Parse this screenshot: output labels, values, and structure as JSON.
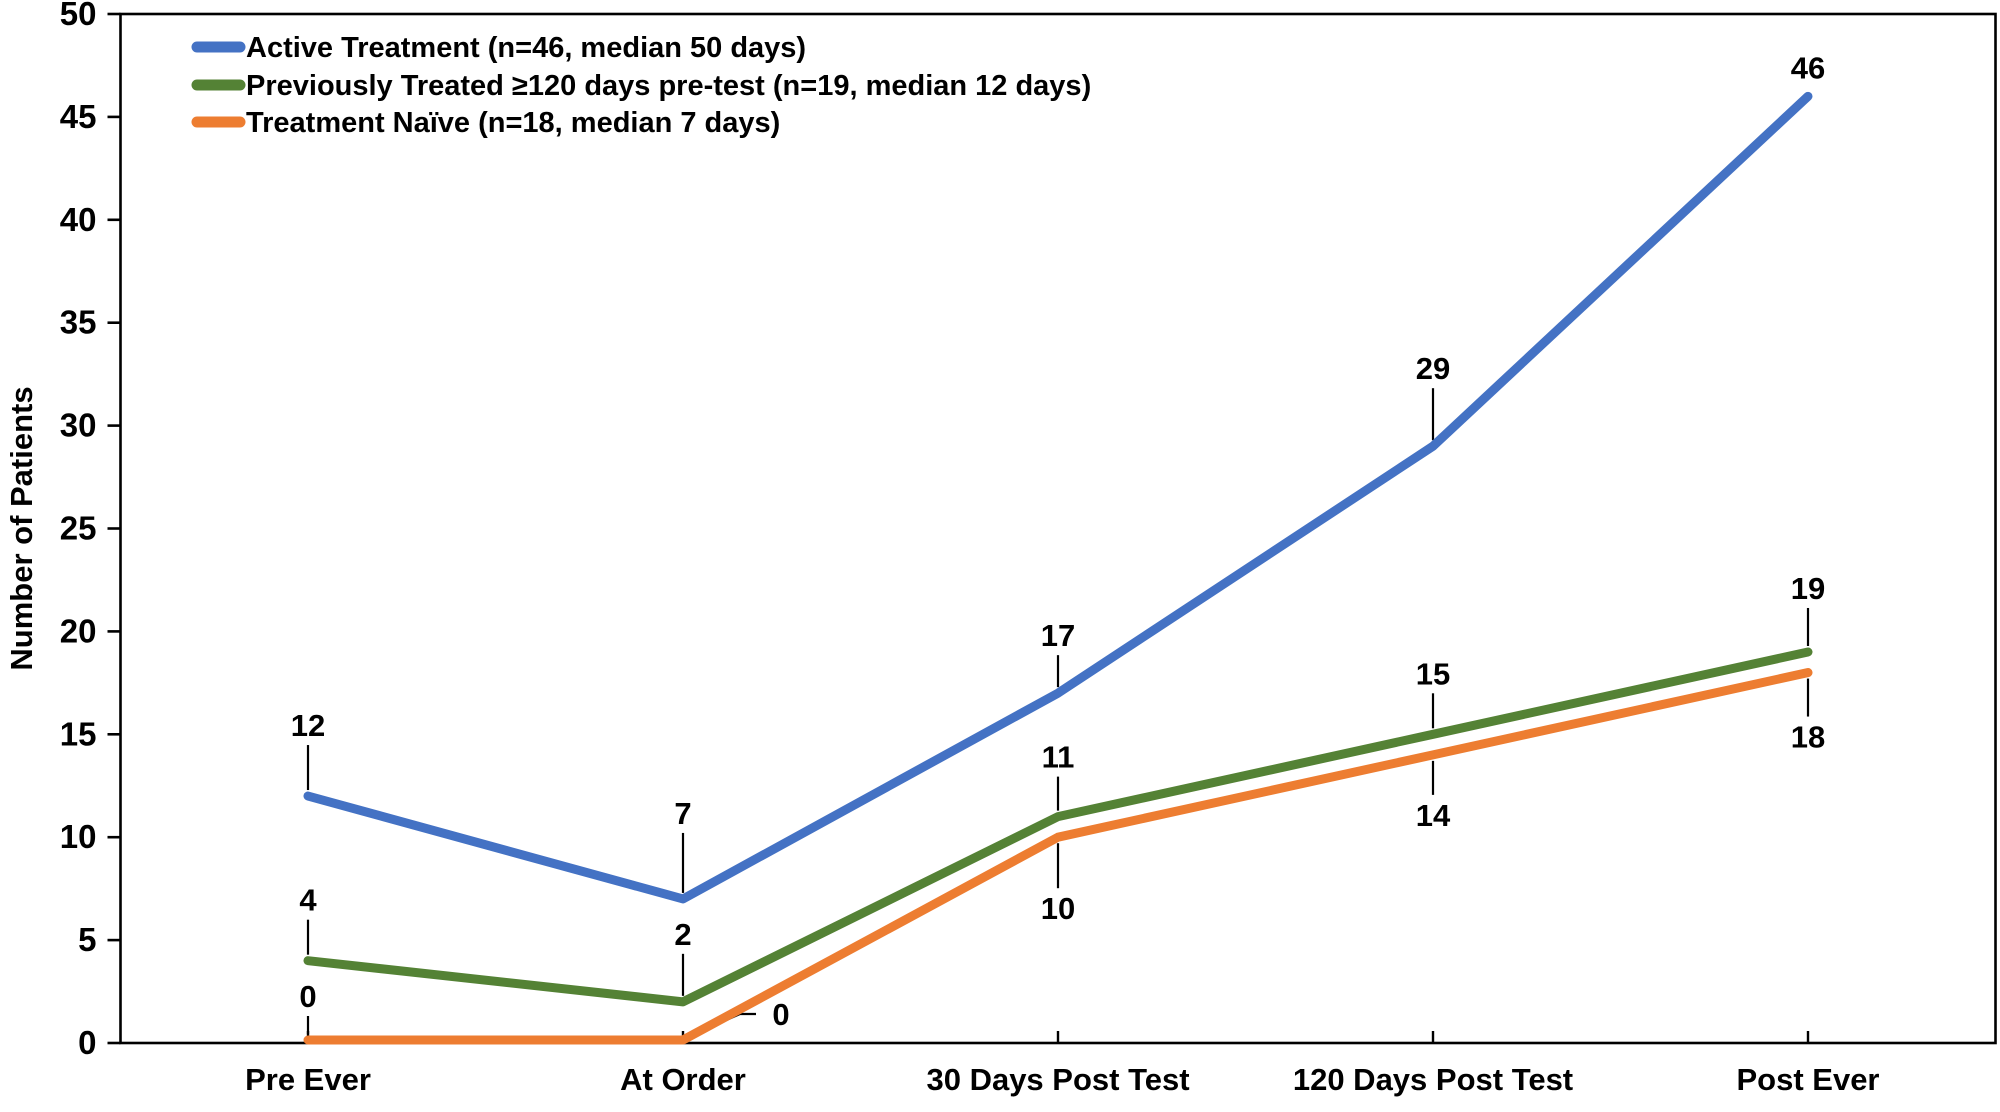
{
  "figure": {
    "y_axis_title": "Number of Patients"
  },
  "chart_data": {
    "type": "line",
    "title": "",
    "xlabel": "",
    "ylabel": "Number of Patients",
    "ylim": [
      0,
      50
    ],
    "ytick_step": 5,
    "grid": false,
    "legend_position": "top-left-inside",
    "categories": [
      "Pre Ever",
      "At Order",
      "30 Days Post Test",
      "120 Days Post Test",
      "Post Ever"
    ],
    "series": [
      {
        "name": "Active Treatment (n=46, median 50 days)",
        "key": "active-treatment",
        "color": "#4472C4",
        "values": [
          12,
          7,
          17,
          29,
          46
        ],
        "labels": [
          {
            "pos": "above",
            "gap": 71
          },
          {
            "pos": "above",
            "gap": 86
          },
          {
            "pos": "above",
            "gap": 58
          },
          {
            "pos": "above",
            "gap": 78
          },
          {
            "pos": "above",
            "gap": 29,
            "leader": false
          }
        ]
      },
      {
        "name": "Previously Treated ≥120 days pre-test (n=19, median 12 days)",
        "key": "previously-treated",
        "color": "#548235",
        "values": [
          4,
          2,
          11,
          15,
          19
        ],
        "labels": [
          {
            "pos": "above",
            "gap": 61
          },
          {
            "pos": "above",
            "gap": 68
          },
          {
            "pos": "above",
            "gap": 60
          },
          {
            "pos": "above",
            "gap": 61
          },
          {
            "pos": "above",
            "gap": 64
          }
        ]
      },
      {
        "name": "Treatment Naïve  (n=18, median 7 days)",
        "key": "treatment-naive",
        "color": "#ED7D31",
        "values": [
          0,
          0,
          10,
          14,
          18
        ],
        "labels": [
          {
            "pos": "above",
            "gap": 44
          },
          {
            "pos": "callout",
            "dx": 98,
            "dy": -26,
            "leader_pts": [
              [
                5,
                -3
              ],
              [
                57,
                -26
              ],
              [
                73,
                -26
              ]
            ]
          },
          {
            "pos": "below",
            "gap": 71
          },
          {
            "pos": "below",
            "gap": 60
          },
          {
            "pos": "below",
            "gap": 64
          }
        ]
      }
    ],
    "yticks": [
      0,
      5,
      10,
      15,
      20,
      25,
      30,
      35,
      40,
      45,
      50
    ]
  },
  "colors": {
    "axis": "#000000",
    "leader": "#000000",
    "text": "#000000",
    "background": "#FFFFFF"
  }
}
